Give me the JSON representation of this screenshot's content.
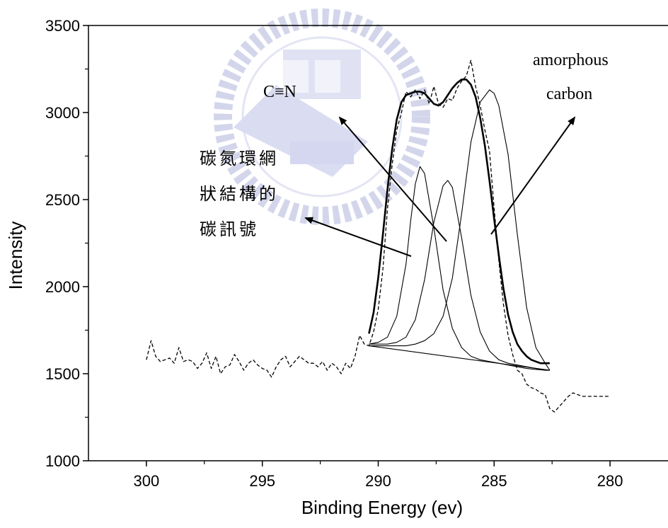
{
  "chart_data": {
    "type": "line",
    "xlabel": "Binding Energy (ev)",
    "ylabel": "Intensity",
    "xlim": [
      302.5,
      277.5
    ],
    "ylim": [
      1000,
      3500
    ],
    "x_reversed": true,
    "xticks": [
      300,
      295,
      290,
      285,
      280
    ],
    "yticks": [
      1000,
      1500,
      2000,
      2500,
      3000,
      3500
    ],
    "grid": false,
    "series": [
      {
        "style": "dashed-raw",
        "x": [
          300.0,
          299.8,
          299.6,
          299.4,
          299.2,
          299.0,
          298.8,
          298.6,
          298.4,
          298.2,
          298.0,
          297.8,
          297.6,
          297.4,
          297.2,
          297.0,
          296.8,
          296.6,
          296.4,
          296.2,
          296.0,
          295.8,
          295.6,
          295.4,
          295.2,
          295.0,
          294.8,
          294.6,
          294.4,
          294.2,
          294.0,
          293.8,
          293.6,
          293.4,
          293.2,
          293.0,
          292.8,
          292.6,
          292.4,
          292.2,
          292.0,
          291.8,
          291.6,
          291.4,
          291.2,
          291.0,
          290.8,
          290.6,
          290.4,
          290.2,
          290.0,
          289.8,
          289.6,
          289.4,
          289.2,
          289.0,
          288.8,
          288.6,
          288.4,
          288.2,
          288.0,
          287.8,
          287.6,
          287.4,
          287.2,
          287.0,
          286.8,
          286.6,
          286.4,
          286.2,
          286.0,
          285.8,
          285.6,
          285.4,
          285.2,
          285.0,
          284.8,
          284.6,
          284.4,
          284.2,
          284.0,
          283.8,
          283.6,
          283.4,
          283.2,
          283.0,
          282.8,
          282.6,
          282.4,
          282.2,
          282.0,
          281.8,
          281.6,
          281.4,
          281.2,
          281.0,
          280.8,
          280.6,
          280.4,
          280.2,
          280.0
        ],
        "y": [
          1580,
          1690,
          1600,
          1570,
          1580,
          1590,
          1560,
          1650,
          1570,
          1580,
          1570,
          1530,
          1560,
          1620,
          1530,
          1600,
          1500,
          1540,
          1550,
          1610,
          1570,
          1520,
          1560,
          1580,
          1550,
          1530,
          1520,
          1480,
          1540,
          1580,
          1600,
          1540,
          1570,
          1600,
          1580,
          1560,
          1560,
          1540,
          1570,
          1520,
          1560,
          1540,
          1500,
          1560,
          1530,
          1600,
          1720,
          1670,
          1660,
          1740,
          1870,
          2100,
          2450,
          2700,
          2900,
          3000,
          3120,
          3090,
          3130,
          3080,
          3130,
          3050,
          3150,
          3050,
          3030,
          3080,
          3070,
          3140,
          3180,
          3210,
          3300,
          3150,
          3040,
          2900,
          2780,
          2450,
          2150,
          1900,
          1720,
          1610,
          1520,
          1500,
          1440,
          1420,
          1410,
          1390,
          1380,
          1300,
          1280,
          1310,
          1340,
          1370,
          1390,
          1380,
          1370,
          1370,
          1370,
          1370,
          1370,
          1370,
          1370
        ]
      },
      {
        "style": "fit-envelope",
        "x": [
          290.4,
          290.2,
          290.0,
          289.8,
          289.6,
          289.4,
          289.2,
          289.0,
          288.8,
          288.6,
          288.4,
          288.2,
          288.0,
          287.8,
          287.6,
          287.4,
          287.2,
          287.0,
          286.8,
          286.6,
          286.4,
          286.2,
          286.0,
          285.8,
          285.6,
          285.4,
          285.2,
          285.0,
          284.8,
          284.6,
          284.4,
          284.2,
          284.0,
          283.8,
          283.6,
          283.4,
          283.2,
          283.0,
          282.8,
          282.6
        ],
        "y": [
          1730,
          1850,
          2050,
          2300,
          2560,
          2790,
          2960,
          3060,
          3100,
          3110,
          3120,
          3120,
          3110,
          3080,
          3050,
          3040,
          3060,
          3100,
          3140,
          3170,
          3190,
          3190,
          3160,
          3090,
          2970,
          2810,
          2610,
          2390,
          2180,
          1990,
          1840,
          1740,
          1670,
          1630,
          1600,
          1580,
          1570,
          1560,
          1560,
          1560
        ]
      },
      {
        "style": "component",
        "x": [
          290.4,
          290.0,
          289.6,
          289.2,
          288.8,
          288.6,
          288.4,
          288.2,
          288.0,
          287.6,
          287.2,
          286.8,
          286.4,
          286.0,
          285.6,
          285.2,
          284.8,
          284.4,
          284.0,
          283.6,
          283.2,
          282.8,
          282.6
        ],
        "y": [
          1670,
          1680,
          1710,
          1830,
          2130,
          2380,
          2590,
          2690,
          2650,
          2340,
          1980,
          1760,
          1650,
          1600,
          1580,
          1570,
          1560,
          1550,
          1540,
          1530,
          1525,
          1520,
          1520
        ]
      },
      {
        "style": "component",
        "x": [
          290.4,
          290.0,
          289.6,
          289.2,
          288.8,
          288.4,
          288.0,
          287.6,
          287.2,
          287.0,
          286.8,
          286.4,
          286.0,
          285.6,
          285.2,
          284.8,
          284.4,
          284.0,
          283.6,
          283.2,
          282.8,
          282.6
        ],
        "y": [
          1670,
          1670,
          1670,
          1680,
          1710,
          1810,
          2040,
          2370,
          2580,
          2610,
          2570,
          2280,
          1950,
          1740,
          1630,
          1580,
          1560,
          1550,
          1540,
          1530,
          1520,
          1520
        ]
      },
      {
        "style": "component",
        "x": [
          290.4,
          290.0,
          289.6,
          289.2,
          288.8,
          288.4,
          288.0,
          287.6,
          287.2,
          286.8,
          286.4,
          286.0,
          285.6,
          285.2,
          285.0,
          284.8,
          284.4,
          284.0,
          283.6,
          283.2,
          282.8,
          282.6
        ],
        "y": [
          1660,
          1660,
          1660,
          1660,
          1660,
          1670,
          1690,
          1730,
          1830,
          2050,
          2420,
          2830,
          3060,
          3130,
          3110,
          3040,
          2760,
          2300,
          1880,
          1650,
          1560,
          1520
        ]
      },
      {
        "style": "baseline",
        "x": [
          290.4,
          282.6
        ],
        "y": [
          1660,
          1520
        ]
      }
    ]
  },
  "annotations": {
    "cn_label_line1": "碳氮環網",
    "cn_label_line2": "狀結構的",
    "cn_label_line3": "碳訊號",
    "triple_bond_label": "C≡N",
    "amorphous_line1": "amorphous",
    "amorphous_line2": "carbon"
  }
}
